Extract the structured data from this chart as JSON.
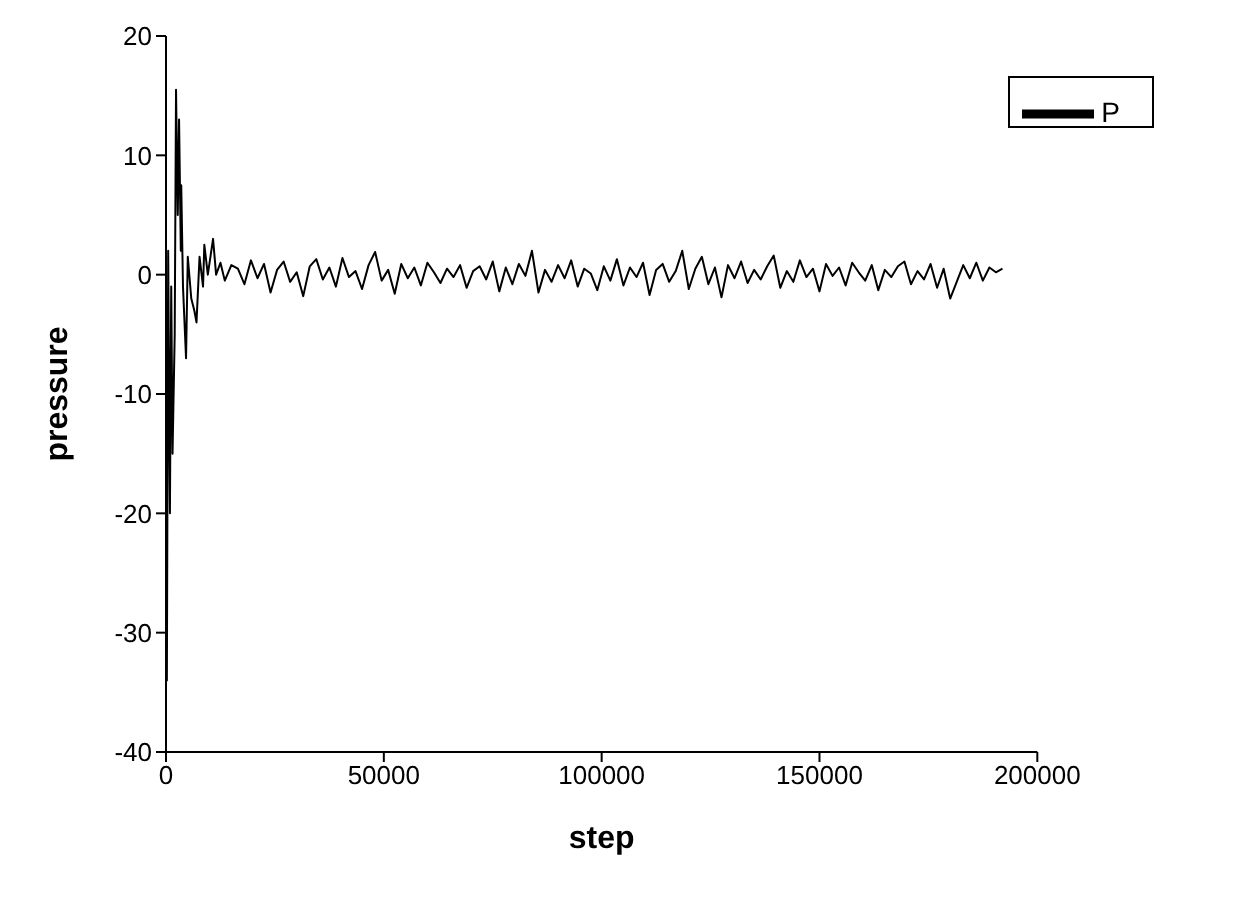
{
  "chart_data": {
    "type": "line",
    "xlabel": "step",
    "ylabel": "pressure",
    "xlim": [
      0,
      200000
    ],
    "xticks": [
      0,
      50000,
      100000,
      150000,
      200000
    ],
    "ylim": [
      -40,
      20
    ],
    "yticks": [
      -40,
      -30,
      -20,
      -10,
      0,
      10,
      20
    ],
    "grid": false,
    "legend": "top right",
    "marker": "none",
    "line_style": "solid",
    "series": [
      {
        "name": "P",
        "color": "#000000",
        "x": [
          0,
          200,
          500,
          900,
          1200,
          1500,
          2000,
          2300,
          2700,
          3000,
          3400,
          3500,
          3900,
          4600,
          5000,
          5800,
          6500,
          7000,
          7700,
          8500,
          8800,
          9600,
          10800,
          11500,
          12500,
          13500,
          15000,
          16500,
          18000,
          19500,
          21000,
          22500,
          24000,
          25500,
          27000,
          28500,
          30000,
          31500,
          33000,
          34500,
          36000,
          37500,
          39000,
          40500,
          42000,
          43500,
          45000,
          46500,
          48000,
          49500,
          51000,
          52500,
          54000,
          55500,
          57000,
          58500,
          60000,
          61500,
          63000,
          64500,
          66000,
          67500,
          69000,
          70500,
          72000,
          73500,
          75000,
          76500,
          78000,
          79500,
          81000,
          82500,
          84000,
          85500,
          87000,
          88500,
          90000,
          91500,
          93000,
          94500,
          96000,
          97500,
          99000,
          100500,
          102000,
          103500,
          105000,
          106500,
          108000,
          109500,
          111000,
          112500,
          114000,
          115500,
          117000,
          118500,
          120000,
          121500,
          123000,
          124500,
          126000,
          127500,
          129000,
          130500,
          132000,
          133500,
          135000,
          136500,
          138000,
          139500,
          141000,
          142500,
          144000,
          145500,
          147000,
          148500,
          150000,
          151500,
          153000,
          154500,
          156000,
          157500,
          159000,
          160500,
          162000,
          163500,
          165000,
          166500,
          168000,
          169500,
          171000,
          172500,
          174000,
          175500,
          177000,
          178500,
          180000,
          181500,
          183000,
          184500,
          186000,
          187500,
          189000,
          190500,
          192000
        ],
        "values": [
          -20,
          -34,
          2,
          -20,
          -1,
          -15,
          -5,
          15.5,
          5,
          13,
          2,
          7.5,
          -1,
          -7,
          1.5,
          -2,
          -3,
          -4,
          1.5,
          -1,
          2.5,
          0,
          3,
          0,
          1,
          -0.5,
          0.8,
          0.5,
          -0.8,
          1.2,
          -0.3,
          0.9,
          -1.5,
          0.4,
          1.1,
          -0.6,
          0.2,
          -1.8,
          0.7,
          1.3,
          -0.4,
          0.6,
          -1.0,
          1.4,
          -0.2,
          0.3,
          -1.2,
          0.8,
          1.9,
          -0.5,
          0.4,
          -1.6,
          0.9,
          -0.3,
          0.6,
          -0.9,
          1.0,
          0.2,
          -0.7,
          0.5,
          -0.2,
          0.8,
          -1.1,
          0.3,
          0.7,
          -0.4,
          1.1,
          -1.4,
          0.6,
          -0.8,
          0.9,
          -0.1,
          2.0,
          -1.5,
          0.4,
          -0.6,
          0.8,
          -0.3,
          1.2,
          -1.0,
          0.5,
          0.1,
          -1.3,
          0.7,
          -0.5,
          1.3,
          -0.9,
          0.6,
          -0.2,
          1.0,
          -1.7,
          0.4,
          0.9,
          -0.6,
          0.3,
          2.0,
          -1.2,
          0.5,
          1.5,
          -0.8,
          0.6,
          -1.9,
          0.8,
          -0.3,
          1.1,
          -0.7,
          0.4,
          -0.4,
          0.7,
          1.6,
          -1.1,
          0.3,
          -0.6,
          1.2,
          -0.2,
          0.5,
          -1.4,
          0.9,
          -0.1,
          0.6,
          -0.9,
          1.0,
          0.2,
          -0.5,
          0.8,
          -1.3,
          0.4,
          -0.2,
          0.7,
          1.1,
          -0.8,
          0.3,
          -0.4,
          0.9,
          -1.1,
          0.5,
          -2.0,
          -0.6,
          0.8,
          -0.3,
          1.0,
          -0.5,
          0.6,
          0.2,
          0.5
        ]
      }
    ]
  }
}
